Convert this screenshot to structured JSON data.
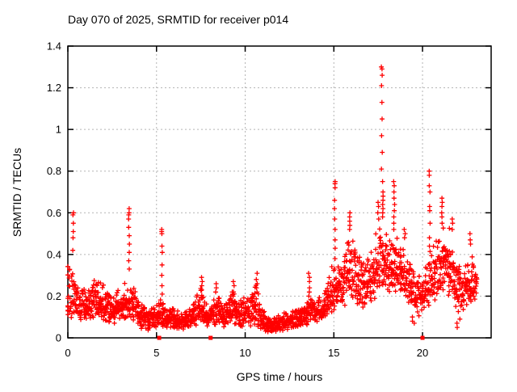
{
  "page": {
    "background": "#ffffff"
  },
  "chart_data": {
    "type": "scatter",
    "title": "Day 070 of 2025, SRMTID for receiver p014",
    "xlabel": "GPS time / hours",
    "ylabel": "SRMTID / TECUs",
    "xlim": [
      0,
      23.87
    ],
    "ylim": [
      0,
      1.4
    ],
    "xticks": [
      0,
      5,
      10,
      15,
      20
    ],
    "xtick_labels": [
      "0",
      "5",
      "10",
      "15",
      "20"
    ],
    "yticks": [
      0,
      0.2,
      0.4,
      0.6,
      0.8,
      1.0,
      1.2,
      1.4
    ],
    "ytick_labels": [
      "0",
      "0.2",
      "0.4",
      "0.6",
      "0.8",
      "1",
      "1.2",
      "1.4"
    ],
    "grid": true,
    "legend": "none",
    "marker": "plus",
    "marker_color": "#ff0000",
    "grid_color": "#b4b4b4",
    "axis_color": "#000000",
    "seed": 20250070,
    "band_envelope": {
      "comment": "dense scatter band; knots are [hour, y_min, y_max] of the point cloud, linearly interpolated",
      "points_per_tenth_hour": 9,
      "x_start": 0.02,
      "x_end": 23.1,
      "knots": [
        [
          0.0,
          0.08,
          0.42
        ],
        [
          0.4,
          0.1,
          0.36
        ],
        [
          0.8,
          0.08,
          0.26
        ],
        [
          1.2,
          0.08,
          0.25
        ],
        [
          1.6,
          0.1,
          0.32
        ],
        [
          2.0,
          0.08,
          0.26
        ],
        [
          2.5,
          0.06,
          0.2
        ],
        [
          3.0,
          0.08,
          0.26
        ],
        [
          3.5,
          0.09,
          0.3
        ],
        [
          4.0,
          0.05,
          0.22
        ],
        [
          4.5,
          0.03,
          0.15
        ],
        [
          5.0,
          0.05,
          0.18
        ],
        [
          5.5,
          0.05,
          0.2
        ],
        [
          6.0,
          0.04,
          0.15
        ],
        [
          6.5,
          0.04,
          0.13
        ],
        [
          7.0,
          0.05,
          0.16
        ],
        [
          7.5,
          0.07,
          0.25
        ],
        [
          7.9,
          0.05,
          0.18
        ],
        [
          8.4,
          0.06,
          0.22
        ],
        [
          8.8,
          0.05,
          0.17
        ],
        [
          9.3,
          0.06,
          0.23
        ],
        [
          9.7,
          0.05,
          0.19
        ],
        [
          10.1,
          0.05,
          0.2
        ],
        [
          10.6,
          0.06,
          0.27
        ],
        [
          11.0,
          0.03,
          0.14
        ],
        [
          11.5,
          0.02,
          0.1
        ],
        [
          12.0,
          0.03,
          0.12
        ],
        [
          12.6,
          0.04,
          0.14
        ],
        [
          13.2,
          0.05,
          0.16
        ],
        [
          13.7,
          0.07,
          0.2
        ],
        [
          14.2,
          0.08,
          0.21
        ],
        [
          14.6,
          0.1,
          0.25
        ],
        [
          15.0,
          0.13,
          0.4
        ],
        [
          15.5,
          0.15,
          0.4
        ],
        [
          15.9,
          0.17,
          0.52
        ],
        [
          16.3,
          0.15,
          0.47
        ],
        [
          16.7,
          0.14,
          0.4
        ],
        [
          17.1,
          0.17,
          0.42
        ],
        [
          17.5,
          0.2,
          0.55
        ],
        [
          17.8,
          0.25,
          0.58
        ],
        [
          18.1,
          0.2,
          0.5
        ],
        [
          18.5,
          0.22,
          0.52
        ],
        [
          18.9,
          0.18,
          0.48
        ],
        [
          19.2,
          0.16,
          0.42
        ],
        [
          19.6,
          0.08,
          0.32
        ],
        [
          20.0,
          0.12,
          0.3
        ],
        [
          20.4,
          0.15,
          0.42
        ],
        [
          20.8,
          0.18,
          0.5
        ],
        [
          21.2,
          0.22,
          0.58
        ],
        [
          21.6,
          0.18,
          0.52
        ],
        [
          22.0,
          0.1,
          0.38
        ],
        [
          22.4,
          0.14,
          0.42
        ],
        [
          22.8,
          0.17,
          0.4
        ],
        [
          23.1,
          0.18,
          0.34
        ]
      ]
    },
    "spike_columns": [
      {
        "x": 0.3,
        "ys": [
          0.6,
          0.59,
          0.55,
          0.51,
          0.48,
          0.42
        ]
      },
      {
        "x": 3.45,
        "ys": [
          0.62,
          0.6,
          0.59,
          0.57,
          0.53,
          0.49,
          0.45,
          0.41,
          0.37,
          0.33
        ]
      },
      {
        "x": 5.3,
        "ys": [
          0.52,
          0.51,
          0.5,
          0.44,
          0.41,
          0.35,
          0.3,
          0.25,
          0.21
        ]
      },
      {
        "x": 7.55,
        "ys": [
          0.29,
          0.27,
          0.25,
          0.23
        ]
      },
      {
        "x": 8.35,
        "ys": [
          0.26,
          0.24,
          0.22
        ]
      },
      {
        "x": 9.35,
        "ys": [
          0.27,
          0.25,
          0.22
        ]
      },
      {
        "x": 10.65,
        "ys": [
          0.31,
          0.28,
          0.26,
          0.24,
          0.22
        ]
      },
      {
        "x": 13.6,
        "ys": [
          0.31,
          0.29,
          0.27,
          0.24,
          0.22,
          0.2
        ]
      },
      {
        "x": 15.05,
        "ys": [
          0.75,
          0.74,
          0.72,
          0.66,
          0.62,
          0.57,
          0.52,
          0.47,
          0.43,
          0.38,
          0.33
        ]
      },
      {
        "x": 15.9,
        "ys": [
          0.6,
          0.58,
          0.56,
          0.54,
          0.52
        ]
      },
      {
        "x": 17.5,
        "ys": [
          0.65,
          0.63,
          0.6,
          0.57
        ]
      },
      {
        "x": 17.7,
        "ys": [
          1.3,
          1.29,
          1.26,
          1.21,
          1.13,
          1.05,
          0.97,
          0.89,
          0.81
        ]
      },
      {
        "x": 17.75,
        "ys": [
          0.75,
          0.7,
          0.68,
          0.66,
          0.64,
          0.62,
          0.6,
          0.58
        ]
      },
      {
        "x": 18.4,
        "ys": [
          0.75,
          0.73,
          0.7,
          0.67,
          0.64,
          0.61,
          0.58,
          0.55,
          0.52
        ]
      },
      {
        "x": 19.0,
        "ys": [
          0.52,
          0.5,
          0.48
        ]
      },
      {
        "x": 19.45,
        "ys": [
          0.1,
          0.08
        ]
      },
      {
        "x": 19.55,
        "ys": [
          0.07
        ]
      },
      {
        "x": 20.4,
        "ys": [
          0.8,
          0.78,
          0.73,
          0.7,
          0.63,
          0.61,
          0.55,
          0.48,
          0.44
        ]
      },
      {
        "x": 21.1,
        "ys": [
          0.67,
          0.65,
          0.63,
          0.6,
          0.58,
          0.55
        ]
      },
      {
        "x": 21.7,
        "ys": [
          0.57,
          0.55,
          0.52
        ]
      },
      {
        "x": 21.95,
        "ys": [
          0.07,
          0.05
        ]
      },
      {
        "x": 22.1,
        "ys": [
          0.09
        ]
      },
      {
        "x": 22.7,
        "ys": [
          0.5,
          0.47,
          0.45
        ]
      }
    ],
    "zero_axis_markers_x": [
      5.15,
      8.05,
      20.0
    ]
  }
}
